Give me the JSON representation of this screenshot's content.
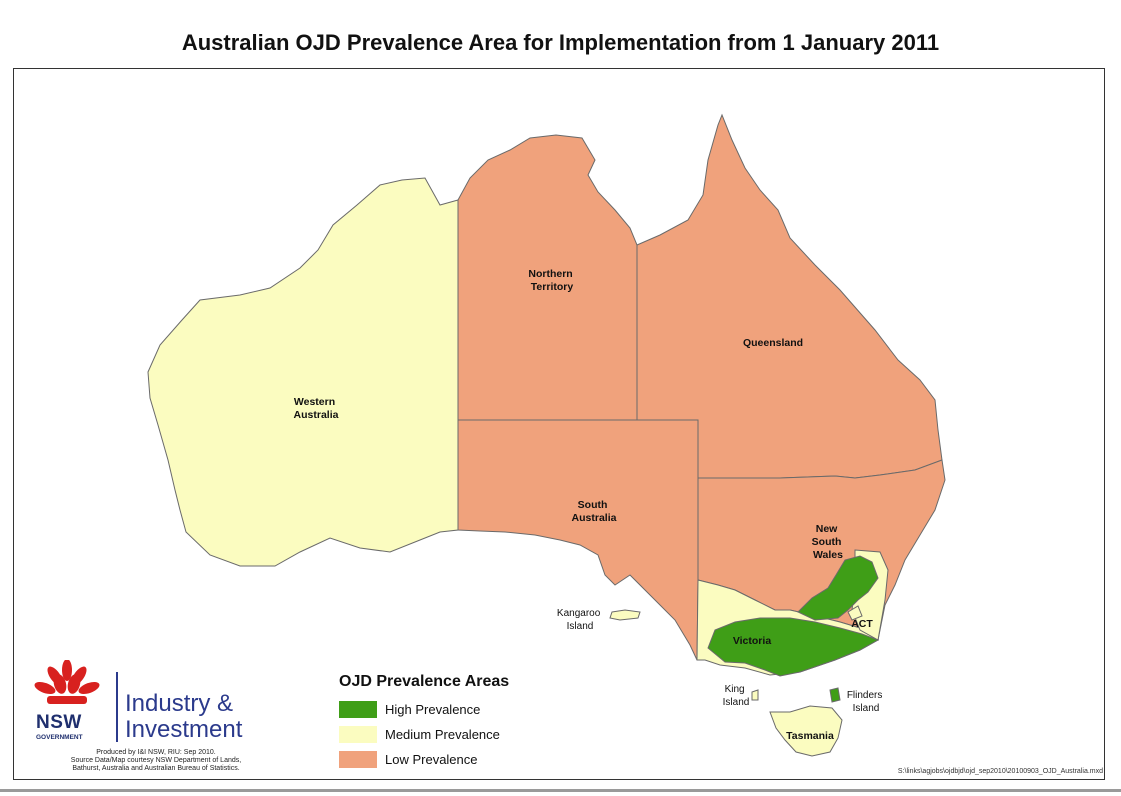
{
  "title": "Australian OJD Prevalence Area for Implementation from 1 January 2011",
  "regions": {
    "western_australia": [
      "Western",
      "Australia"
    ],
    "northern_territory": [
      "Northern",
      "Territory"
    ],
    "queensland": [
      "Queensland"
    ],
    "south_australia": [
      "South",
      "Australia"
    ],
    "new_south_wales": [
      "New",
      "South",
      "Wales"
    ],
    "victoria": [
      "Victoria"
    ],
    "act": [
      "ACT"
    ],
    "tasmania": [
      "Tasmania"
    ],
    "kangaroo_island": [
      "Kangaroo",
      "Island"
    ],
    "king_island": [
      "King",
      "Island"
    ],
    "flinders_island": [
      "Flinders",
      "Island"
    ]
  },
  "colors": {
    "high": "#3f9e17",
    "medium": "#fbfcc0",
    "low": "#f0a27c",
    "border": "#6a6a6a"
  },
  "legend": {
    "title": "OJD Prevalence Areas",
    "items": [
      {
        "label": "High Prevalence",
        "color": "#3f9e17"
      },
      {
        "label": "Medium Prevalence",
        "color": "#fbfcc0"
      },
      {
        "label": "Low Prevalence",
        "color": "#f0a27c"
      }
    ]
  },
  "logo": {
    "nsw": "NSW",
    "government": "GOVERNMENT",
    "line1": "Industry &",
    "line2": "Investment"
  },
  "credits": [
    "Produced by I&I NSW, RIU: Sep 2010.",
    "Source Data/Map courtesy NSW Department of Lands,",
    "Bathurst, Australia and Australian Bureau of Statistics."
  ],
  "file_path": "S:\\links\\agjobs\\ojdbjd\\ojd_sep2010\\20100903_OJD_Australia.mxd"
}
